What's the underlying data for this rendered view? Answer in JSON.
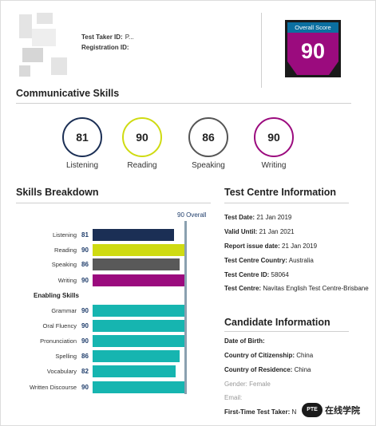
{
  "header": {
    "test_taker_id_label": "Test Taker ID:",
    "test_taker_id_value": "P...",
    "registration_id_label": "Registration ID:",
    "overall_score_label": "Overall Score",
    "overall_score": "90",
    "score_card_color": "#9b0b7e"
  },
  "communicative": {
    "title": "Communicative Skills",
    "skills": [
      {
        "name": "Listening",
        "score": "81",
        "color": "#1b2f55"
      },
      {
        "name": "Reading",
        "score": "90",
        "color": "#cfdb12"
      },
      {
        "name": "Speaking",
        "score": "86",
        "color": "#555555"
      },
      {
        "name": "Writing",
        "score": "90",
        "color": "#9b0b7e"
      }
    ]
  },
  "breakdown": {
    "title": "Skills Breakdown",
    "overall_label": "90 Overall",
    "enabling_title": "Enabling Skills"
  },
  "chart_data": {
    "type": "bar",
    "orientation": "horizontal",
    "categories": [
      "Listening",
      "Reading",
      "Speaking",
      "Writing",
      "Grammar",
      "Oral Fluency",
      "Pronunciation",
      "Spelling",
      "Vocabulary",
      "Written Discourse"
    ],
    "values": [
      81,
      90,
      86,
      90,
      90,
      90,
      90,
      86,
      82,
      90
    ],
    "colors": [
      "#1b2f55",
      "#cfdb12",
      "#595959",
      "#9b0b7e",
      "#16b5b0",
      "#16b5b0",
      "#16b5b0",
      "#16b5b0",
      "#16b5b0",
      "#16b5b0"
    ],
    "xlim": [
      10,
      90
    ],
    "reference_line": 90
  },
  "test_centre": {
    "title": "Test Centre Information",
    "rows": [
      {
        "label": "Test Date:",
        "value": "21 Jan 2019"
      },
      {
        "label": "Valid Until:",
        "value": "21 Jan 2021"
      },
      {
        "label": "Report issue date:",
        "value": "21 Jan 2019"
      },
      {
        "label": "Test Centre Country:",
        "value": "Australia"
      },
      {
        "label": "Test Centre ID:",
        "value": "58064"
      },
      {
        "label": "Test Centre:",
        "value": "Navitas English Test Centre-Brisbane"
      }
    ]
  },
  "candidate": {
    "title": "Candidate Information",
    "rows": [
      {
        "label": "Date of Birth:",
        "value": ""
      },
      {
        "label": "Country of Citizenship:",
        "value": "China"
      },
      {
        "label": "Country of Residence:",
        "value": "China"
      },
      {
        "label": "Gender:",
        "value": "Female"
      },
      {
        "label": "Email:",
        "value": ""
      },
      {
        "label": "First-Time Test Taker:",
        "value": "N"
      }
    ]
  },
  "watermark": {
    "logo_text": "PTE",
    "text": "在线学院"
  }
}
